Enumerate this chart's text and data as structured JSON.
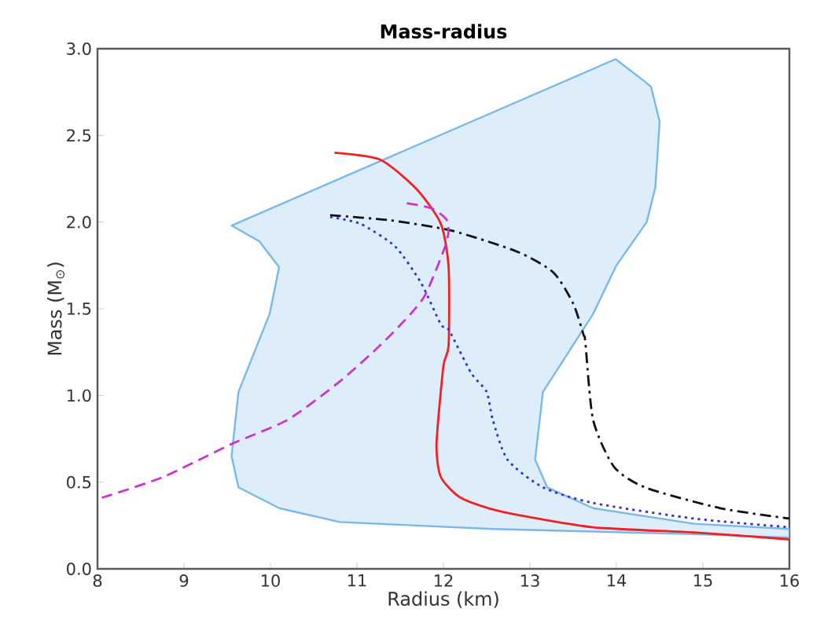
{
  "chart_data": {
    "type": "line",
    "title": "Mass-radius",
    "xlabel": "Radius (km)",
    "ylabel": "Mass (M$_{⊙}$)",
    "xlim": [
      8,
      16
    ],
    "ylim": [
      0,
      3
    ],
    "xticks": [
      8,
      9,
      10,
      11,
      12,
      13,
      14,
      15,
      16
    ],
    "yticks": [
      {
        "value": 0,
        "label": "0.0"
      },
      {
        "value": 0.5,
        "label": "0.5"
      },
      {
        "value": 1,
        "label": "1.0"
      },
      {
        "value": 1.5,
        "label": "1.5"
      },
      {
        "value": 2,
        "label": "2.0"
      },
      {
        "value": 2.5,
        "label": "2.5"
      },
      {
        "value": 3,
        "label": "3.0"
      }
    ],
    "grid": false,
    "legend": false,
    "series": [
      {
        "type": "area",
        "color": "#7ab8ea",
        "x": [
          9.55,
          13.99,
          14.33,
          14.4,
          14.5,
          14.45,
          14.35,
          14.0,
          13.73,
          13.15,
          13.06,
          13.2,
          13.73,
          14.9,
          16,
          16,
          14.9,
          12.57,
          10.8,
          10.1,
          9.63,
          9.55,
          9.63,
          9.99,
          10.1,
          9.87,
          9.55
        ],
        "values": [
          1.98,
          2.94,
          2.81,
          2.78,
          2.58,
          2.2,
          2.0,
          1.75,
          1.47,
          1.02,
          0.63,
          0.47,
          0.35,
          0.26,
          0.23,
          0.18,
          0.2,
          0.23,
          0.27,
          0.35,
          0.47,
          0.65,
          1.02,
          1.47,
          1.74,
          1.89,
          1.98
        ]
      },
      {
        "color": "#ee2222",
        "line_style": "solid",
        "x": [
          10.74,
          11.27,
          11.69,
          11.97,
          12.06,
          12.06,
          12.0,
          11.92,
          11.97,
          12.2,
          12.67,
          13.73,
          14.9,
          16
        ],
        "values": [
          2.4,
          2.36,
          2.19,
          1.99,
          1.74,
          1.29,
          1.17,
          0.72,
          0.53,
          0.41,
          0.33,
          0.24,
          0.21,
          0.17
        ]
      },
      {
        "color": "#111111",
        "line_style": "dashdot",
        "x": [
          10.69,
          11.39,
          12.1,
          12.85,
          13.27,
          13.5,
          13.62,
          13.64,
          13.73,
          13.97,
          14.33,
          15.2,
          16
        ],
        "values": [
          2.04,
          2.01,
          1.95,
          1.83,
          1.71,
          1.53,
          1.35,
          1.31,
          0.86,
          0.59,
          0.47,
          0.35,
          0.29
        ]
      },
      {
        "color": "#3333cc",
        "line_style": "dotted",
        "x": [
          10.69,
          11.04,
          11.44,
          11.74,
          11.97,
          12.06,
          12.32,
          12.5,
          12.57,
          12.74,
          13.15,
          13.73,
          14.9,
          16
        ],
        "values": [
          2.03,
          1.99,
          1.86,
          1.65,
          1.41,
          1.38,
          1.13,
          1.02,
          0.86,
          0.63,
          0.47,
          0.38,
          0.29,
          0.24
        ]
      },
      {
        "color": "#cc33cc",
        "line_style": "dashed",
        "x": [
          8.05,
          8.76,
          9.55,
          10.2,
          10.8,
          11.27,
          11.62,
          11.8,
          12.04,
          12.04,
          11.86,
          11.57
        ],
        "values": [
          0.41,
          0.53,
          0.72,
          0.86,
          1.08,
          1.29,
          1.47,
          1.59,
          1.89,
          2.01,
          2.08,
          2.11
        ]
      }
    ]
  }
}
